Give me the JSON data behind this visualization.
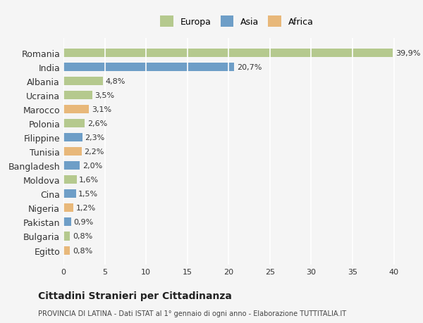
{
  "countries": [
    "Romania",
    "India",
    "Albania",
    "Ucraina",
    "Marocco",
    "Polonia",
    "Filippine",
    "Tunisia",
    "Bangladesh",
    "Moldova",
    "Cina",
    "Nigeria",
    "Pakistan",
    "Bulgaria",
    "Egitto"
  ],
  "values": [
    39.9,
    20.7,
    4.8,
    3.5,
    3.1,
    2.6,
    2.3,
    2.2,
    2.0,
    1.6,
    1.5,
    1.2,
    0.9,
    0.8,
    0.8
  ],
  "labels": [
    "39,9%",
    "20,7%",
    "4,8%",
    "3,5%",
    "3,1%",
    "2,6%",
    "2,3%",
    "2,2%",
    "2,0%",
    "1,6%",
    "1,5%",
    "1,2%",
    "0,9%",
    "0,8%",
    "0,8%"
  ],
  "continents": [
    "Europa",
    "Asia",
    "Europa",
    "Europa",
    "Africa",
    "Europa",
    "Asia",
    "Africa",
    "Asia",
    "Europa",
    "Asia",
    "Africa",
    "Asia",
    "Europa",
    "Africa"
  ],
  "colors": {
    "Europa": "#b5c98e",
    "Asia": "#6e9ec7",
    "Africa": "#e8b87a"
  },
  "legend_colors": {
    "Europa": "#b5c98e",
    "Asia": "#6e9ec7",
    "Africa": "#e8b87a"
  },
  "xlim": [
    0,
    42
  ],
  "xticks": [
    0,
    5,
    10,
    15,
    20,
    25,
    30,
    35,
    40
  ],
  "title": "Cittadini Stranieri per Cittadinanza",
  "subtitle": "PROVINCIA DI LATINA - Dati ISTAT al 1° gennaio di ogni anno - Elaborazione TUTTITALIA.IT",
  "bg_color": "#f5f5f5",
  "grid_color": "#ffffff",
  "bar_height": 0.6
}
